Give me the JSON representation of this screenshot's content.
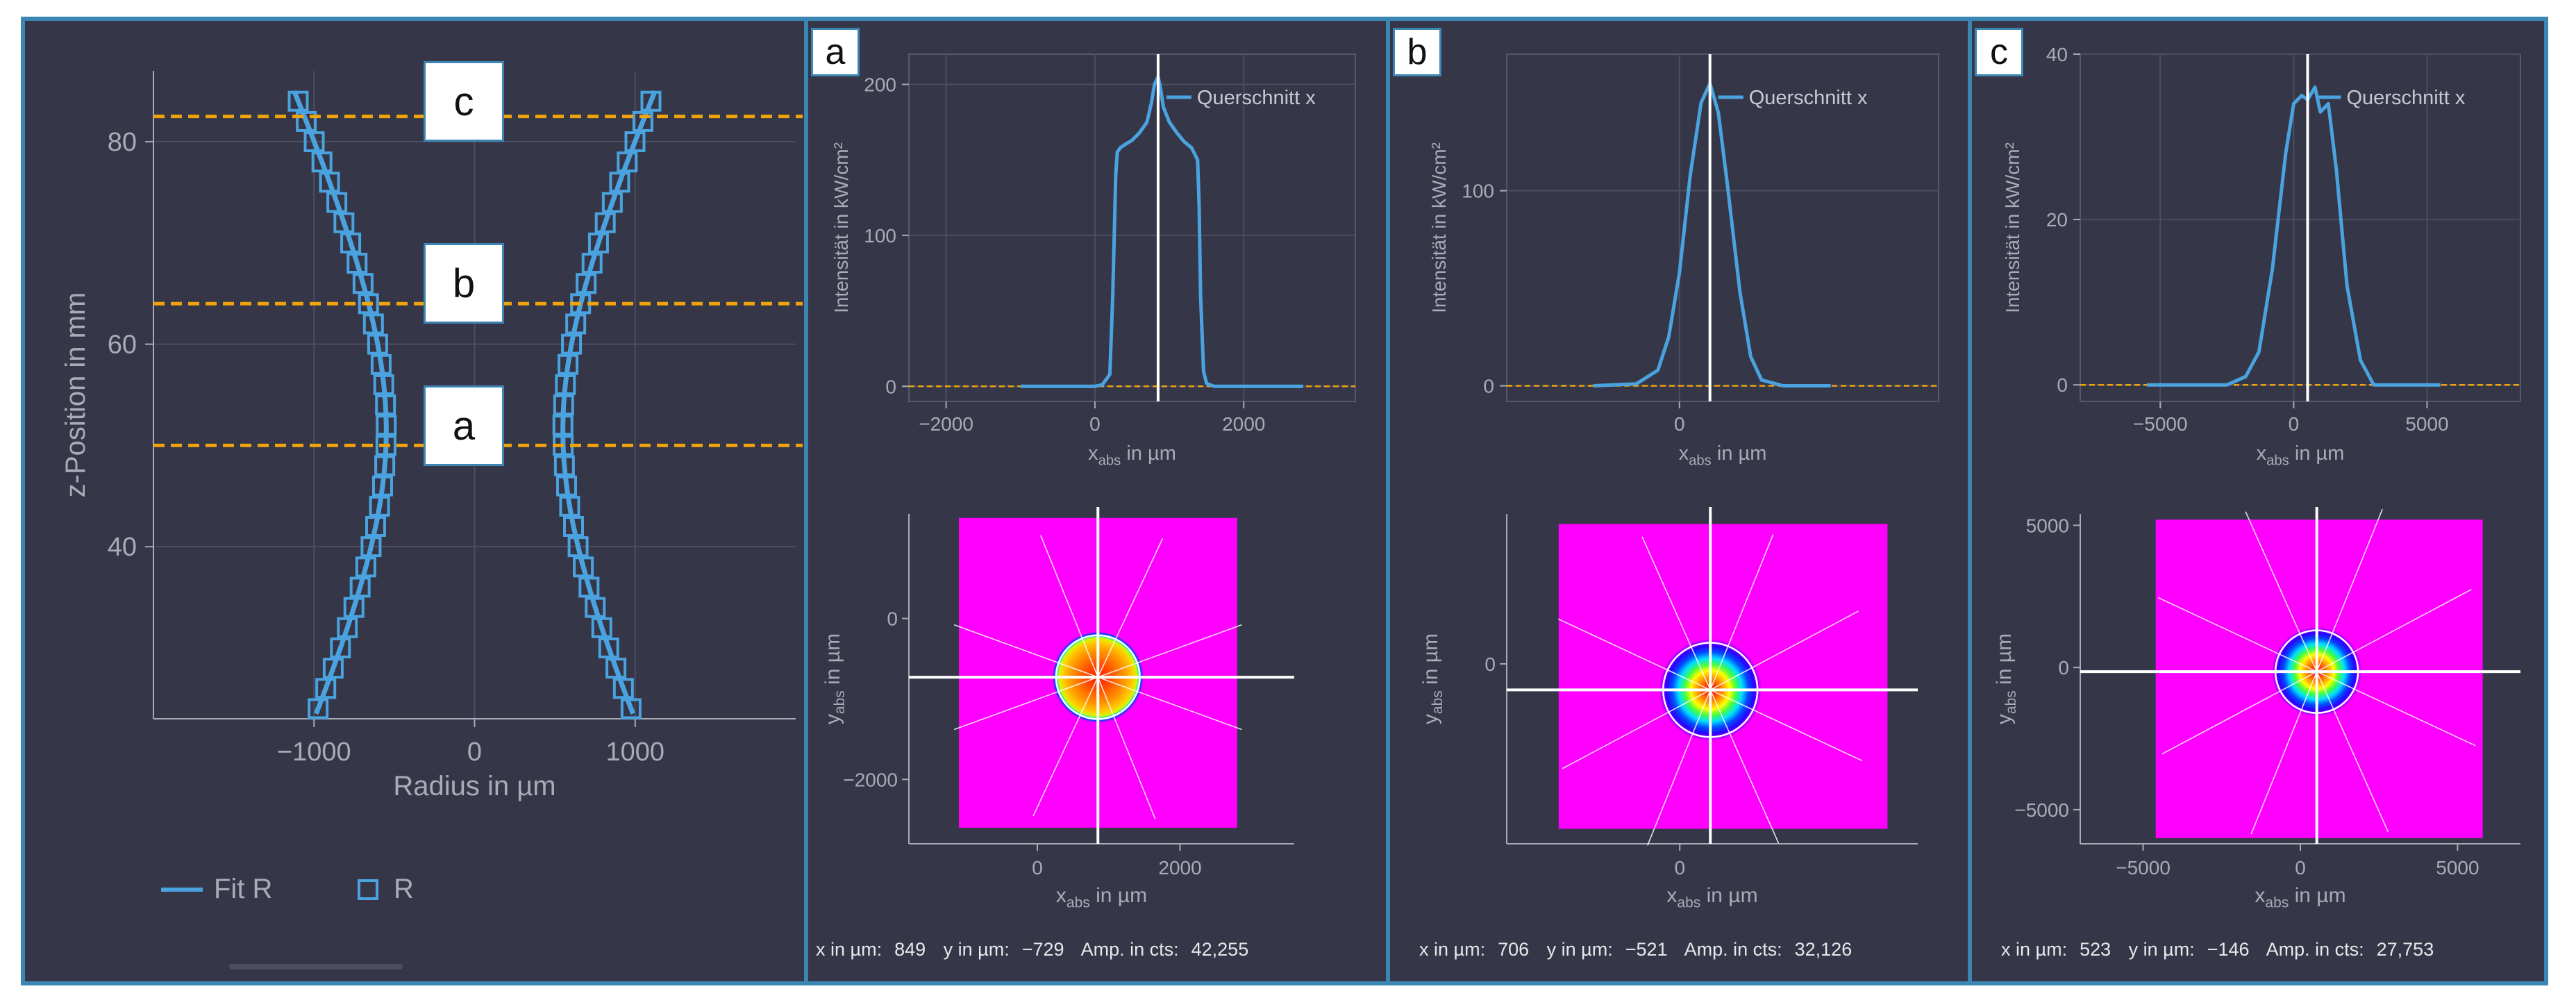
{
  "colors": {
    "background": "#353648",
    "border": "#3b86b3",
    "series": "#4aa3df",
    "guide": "#f0a30a",
    "cursor": "#ffffff",
    "beam_bg": "#ff00ff",
    "axis": "#a9abb6"
  },
  "chart_data": [
    {
      "id": "caustic",
      "type": "scatter",
      "title": "",
      "xlabel": "Radius in µm",
      "ylabel": "z-Position in mm",
      "xlim": [
        -2000,
        2000
      ],
      "ylim": [
        23,
        87
      ],
      "xticks": [
        "−1000",
        "0",
        "1000"
      ],
      "xtick_values": [
        -1000,
        0,
        1000
      ],
      "yticks": [
        "40",
        "60",
        "80"
      ],
      "ytick_values": [
        40,
        60,
        80
      ],
      "legend": [
        "Fit R",
        "R"
      ],
      "z_planes": [
        {
          "label": "a",
          "z": 50
        },
        {
          "label": "b",
          "z": 64
        },
        {
          "label": "c",
          "z": 82.5
        }
      ],
      "fit": {
        "w0": 550,
        "z0": 51.5,
        "zr": 18.8
      },
      "points_z": [
        24,
        26,
        28,
        30,
        32,
        34,
        36,
        38,
        40,
        42,
        44,
        46,
        48,
        50,
        52,
        54,
        56,
        58,
        60,
        62,
        64,
        66,
        68,
        70,
        72,
        74,
        76,
        78,
        80,
        82,
        84
      ]
    },
    {
      "id": "profile-a",
      "type": "line",
      "panel": "a",
      "xlabel": "xabs in µm",
      "ylabel": "Intensität in kW/cm²",
      "series_label": "Querschnitt x",
      "xlim": [
        -2500,
        3500
      ],
      "ylim": [
        -10,
        220
      ],
      "xticks": [
        "−2000",
        "0",
        "2000"
      ],
      "xtick_values": [
        -2000,
        0,
        2000
      ],
      "yticks": [
        "0",
        "100",
        "200"
      ],
      "ytick_values": [
        0,
        100,
        200
      ],
      "cursor_x": 849,
      "x": [
        -1000,
        0,
        100,
        200,
        240,
        280,
        300,
        340,
        400,
        500,
        600,
        700,
        760,
        800,
        849,
        880,
        920,
        1000,
        1100,
        1200,
        1300,
        1380,
        1400,
        1420,
        1460,
        1500,
        1600,
        2000,
        2800
      ],
      "y": [
        0,
        0,
        1,
        8,
        60,
        140,
        155,
        158,
        160,
        163,
        168,
        175,
        188,
        200,
        205,
        198,
        185,
        175,
        168,
        162,
        158,
        150,
        120,
        60,
        10,
        2,
        0,
        0,
        0
      ]
    },
    {
      "id": "profile-b",
      "type": "line",
      "panel": "b",
      "xlabel": "xabs in µm",
      "ylabel": "Intensität in kW/cm²",
      "series_label": "Querschnitt x",
      "xlim": [
        -4000,
        6000
      ],
      "ylim": [
        -8,
        170
      ],
      "xticks": [
        "0"
      ],
      "xtick_values": [
        0
      ],
      "yticks": [
        "0",
        "100"
      ],
      "ytick_values": [
        0,
        100
      ],
      "cursor_x": 706,
      "x": [
        -2000,
        -1000,
        -500,
        -250,
        0,
        250,
        500,
        706,
        900,
        1100,
        1400,
        1650,
        1900,
        2400,
        3500
      ],
      "y": [
        0,
        1,
        8,
        25,
        58,
        108,
        145,
        155,
        140,
        105,
        48,
        15,
        3,
        0,
        0
      ]
    },
    {
      "id": "profile-c",
      "type": "line",
      "panel": "c",
      "xlabel": "xabs in µm",
      "ylabel": "Intensität in kW/cm²",
      "series_label": "Querschnitt x",
      "xlim": [
        -8000,
        8500
      ],
      "ylim": [
        -2,
        40
      ],
      "xticks": [
        "−5000",
        "0",
        "5000"
      ],
      "xtick_values": [
        -5000,
        0,
        5000
      ],
      "yticks": [
        "0",
        "20",
        "40"
      ],
      "ytick_values": [
        0,
        20,
        40
      ],
      "cursor_x": 523,
      "x": [
        -5500,
        -2500,
        -1800,
        -1300,
        -800,
        -300,
        0,
        300,
        523,
        800,
        1000,
        1300,
        1600,
        2000,
        2500,
        3000,
        5500
      ],
      "y": [
        0,
        0,
        1,
        4,
        14,
        28,
        34,
        35,
        34.5,
        36,
        33,
        34,
        26,
        12,
        3,
        0,
        0
      ]
    },
    {
      "id": "beam-a",
      "type": "heatmap",
      "panel": "a",
      "xlabel": "x abs in µm",
      "ylabel": "yabs in µm",
      "xlim": [
        -1800,
        3600
      ],
      "ylim": [
        -2800,
        1300
      ],
      "xticks": [
        "0",
        "2000"
      ],
      "xtick_values": [
        0,
        2000
      ],
      "yticks": [
        "0",
        "−2000"
      ],
      "ytick_values": [
        0,
        -2000
      ],
      "image_x": [
        -1100,
        2800
      ],
      "image_y": [
        -2600,
        1250
      ],
      "center": [
        849,
        -729
      ],
      "radius": 600,
      "profile": "tophat"
    },
    {
      "id": "beam-b",
      "type": "heatmap",
      "panel": "b",
      "xlabel": "x abs in µm",
      "ylabel": "yabs in µm",
      "xlim": [
        -4000,
        5500
      ],
      "ylim": [
        -3600,
        3000
      ],
      "xticks": [
        "0"
      ],
      "xtick_values": [
        0
      ],
      "yticks": [
        "0"
      ],
      "ytick_values": [
        0
      ],
      "image_x": [
        -2800,
        4800
      ],
      "image_y": [
        -3300,
        2800
      ],
      "center": [
        706,
        -521
      ],
      "radius": 1100,
      "profile": "gaussian"
    },
    {
      "id": "beam-c",
      "type": "heatmap",
      "panel": "c",
      "xlabel": "x abs in µm",
      "ylabel": "yabs in µm",
      "xlim": [
        -7000,
        7000
      ],
      "ylim": [
        -6200,
        5400
      ],
      "xticks": [
        "−5000",
        "0",
        "5000"
      ],
      "xtick_values": [
        -5000,
        0,
        5000
      ],
      "yticks": [
        "5000",
        "0",
        "−5000"
      ],
      "ytick_values": [
        5000,
        0,
        -5000
      ],
      "image_x": [
        -4600,
        5800
      ],
      "image_y": [
        -6000,
        5200
      ],
      "center": [
        523,
        -146
      ],
      "radius": 1500,
      "profile": "gaussian"
    }
  ],
  "panels": [
    {
      "label": "a",
      "status": {
        "x_label": "x in µm:",
        "x_value": "849",
        "y_label": "y in µm:",
        "y_value": "−729",
        "amp_label": "Amp. in cts:",
        "amp_value": "42,255"
      }
    },
    {
      "label": "b",
      "status": {
        "x_label": "x in µm:",
        "x_value": "706",
        "y_label": "y in µm:",
        "y_value": "−521",
        "amp_label": "Amp. in cts:",
        "amp_value": "32,126"
      }
    },
    {
      "label": "c",
      "status": {
        "x_label": "x in µm:",
        "x_value": "523",
        "y_label": "y in µm:",
        "y_value": "−146",
        "amp_label": "Amp. in cts:",
        "amp_value": "27,753"
      }
    }
  ],
  "legend": {
    "fit_label": "Fit R",
    "points_label": "R"
  }
}
